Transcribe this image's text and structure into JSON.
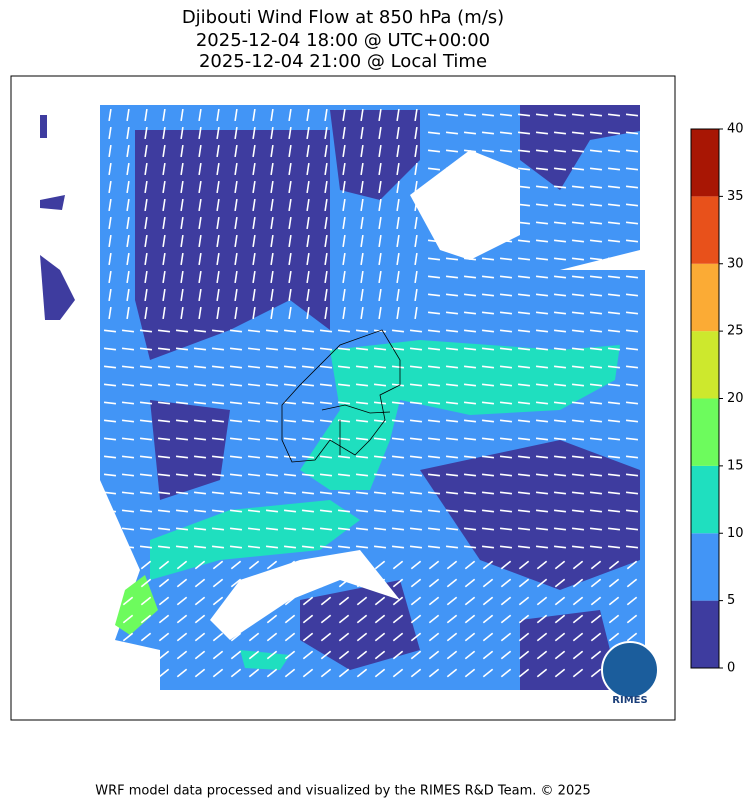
{
  "title": [
    "Djibouti Wind Flow at 850 hPa (m/s)",
    "2025-12-04 18:00 @ UTC+00:00",
    "2025-12-04 21:00 @ Local Time"
  ],
  "colorbar": {
    "ticks": [
      0,
      5,
      10,
      15,
      20,
      25,
      30,
      35,
      40
    ],
    "colors": [
      "#3e3c9f",
      "#4295f6",
      "#1fdfbf",
      "#6dfb5d",
      "#cde82d",
      "#fbab35",
      "#e8511b",
      "#a81604"
    ]
  },
  "logo": "RIMES",
  "footer": "WRF model data processed and visualized by the RIMES R&D Team. © 2025"
}
